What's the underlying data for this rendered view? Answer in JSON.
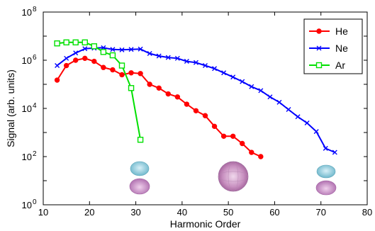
{
  "chart_data": {
    "type": "line",
    "xlabel": "Harmonic Order",
    "ylabel": "Signal (arb. units)",
    "xlim": [
      10,
      80
    ],
    "ylim_exponents": [
      0,
      8
    ],
    "yscale": "log",
    "grid": false,
    "legend_position": "top-right",
    "x_ticks": [
      "10",
      "20",
      "30",
      "40",
      "50",
      "60",
      "70",
      "80"
    ],
    "y_ticks": [
      {
        "base": "10",
        "exp": "0"
      },
      {
        "base": "10",
        "exp": "2"
      },
      {
        "base": "10",
        "exp": "4"
      },
      {
        "base": "10",
        "exp": "6"
      },
      {
        "base": "10",
        "exp": "8"
      }
    ],
    "series": [
      {
        "name": "He",
        "color": "#ff0000",
        "marker": "circle",
        "x": [
          13,
          15,
          17,
          19,
          21,
          23,
          25,
          27,
          29,
          31,
          33,
          35,
          37,
          39,
          41,
          43,
          45,
          47,
          49,
          51,
          53,
          55,
          57
        ],
        "y": [
          150000,
          600000,
          1000000,
          1200000,
          900000,
          500000,
          400000,
          250000,
          300000,
          280000,
          100000,
          70000,
          40000,
          30000,
          15000,
          8000,
          5000,
          1800,
          700,
          700,
          350,
          150,
          100
        ]
      },
      {
        "name": "Ne",
        "color": "#0000ff",
        "marker": "x",
        "x": [
          13,
          15,
          17,
          19,
          21,
          23,
          25,
          27,
          29,
          31,
          33,
          35,
          37,
          39,
          41,
          43,
          45,
          47,
          49,
          51,
          53,
          55,
          57,
          59,
          61,
          63,
          65,
          67,
          69,
          71,
          73
        ],
        "y": [
          600000,
          1200000,
          2000000,
          3000000,
          3200000,
          3300000,
          2800000,
          2700000,
          2800000,
          2900000,
          1900000,
          1500000,
          1300000,
          1200000,
          900000,
          800000,
          600000,
          450000,
          300000,
          200000,
          130000,
          80000,
          55000,
          30000,
          18000,
          9000,
          4500,
          2500,
          1100,
          220,
          150
        ]
      },
      {
        "name": "Ar",
        "color": "#00e000",
        "marker": "square",
        "x": [
          13,
          15,
          17,
          19,
          21,
          23,
          25,
          27,
          29,
          31
        ],
        "y": [
          5000000,
          5500000,
          5500000,
          5500000,
          3800000,
          2200000,
          1600000,
          600000,
          70000,
          500
        ]
      }
    ],
    "orbital_icons": [
      "p-orbital-icon",
      "s-orbital-icon",
      "p-orbital-icon"
    ]
  }
}
